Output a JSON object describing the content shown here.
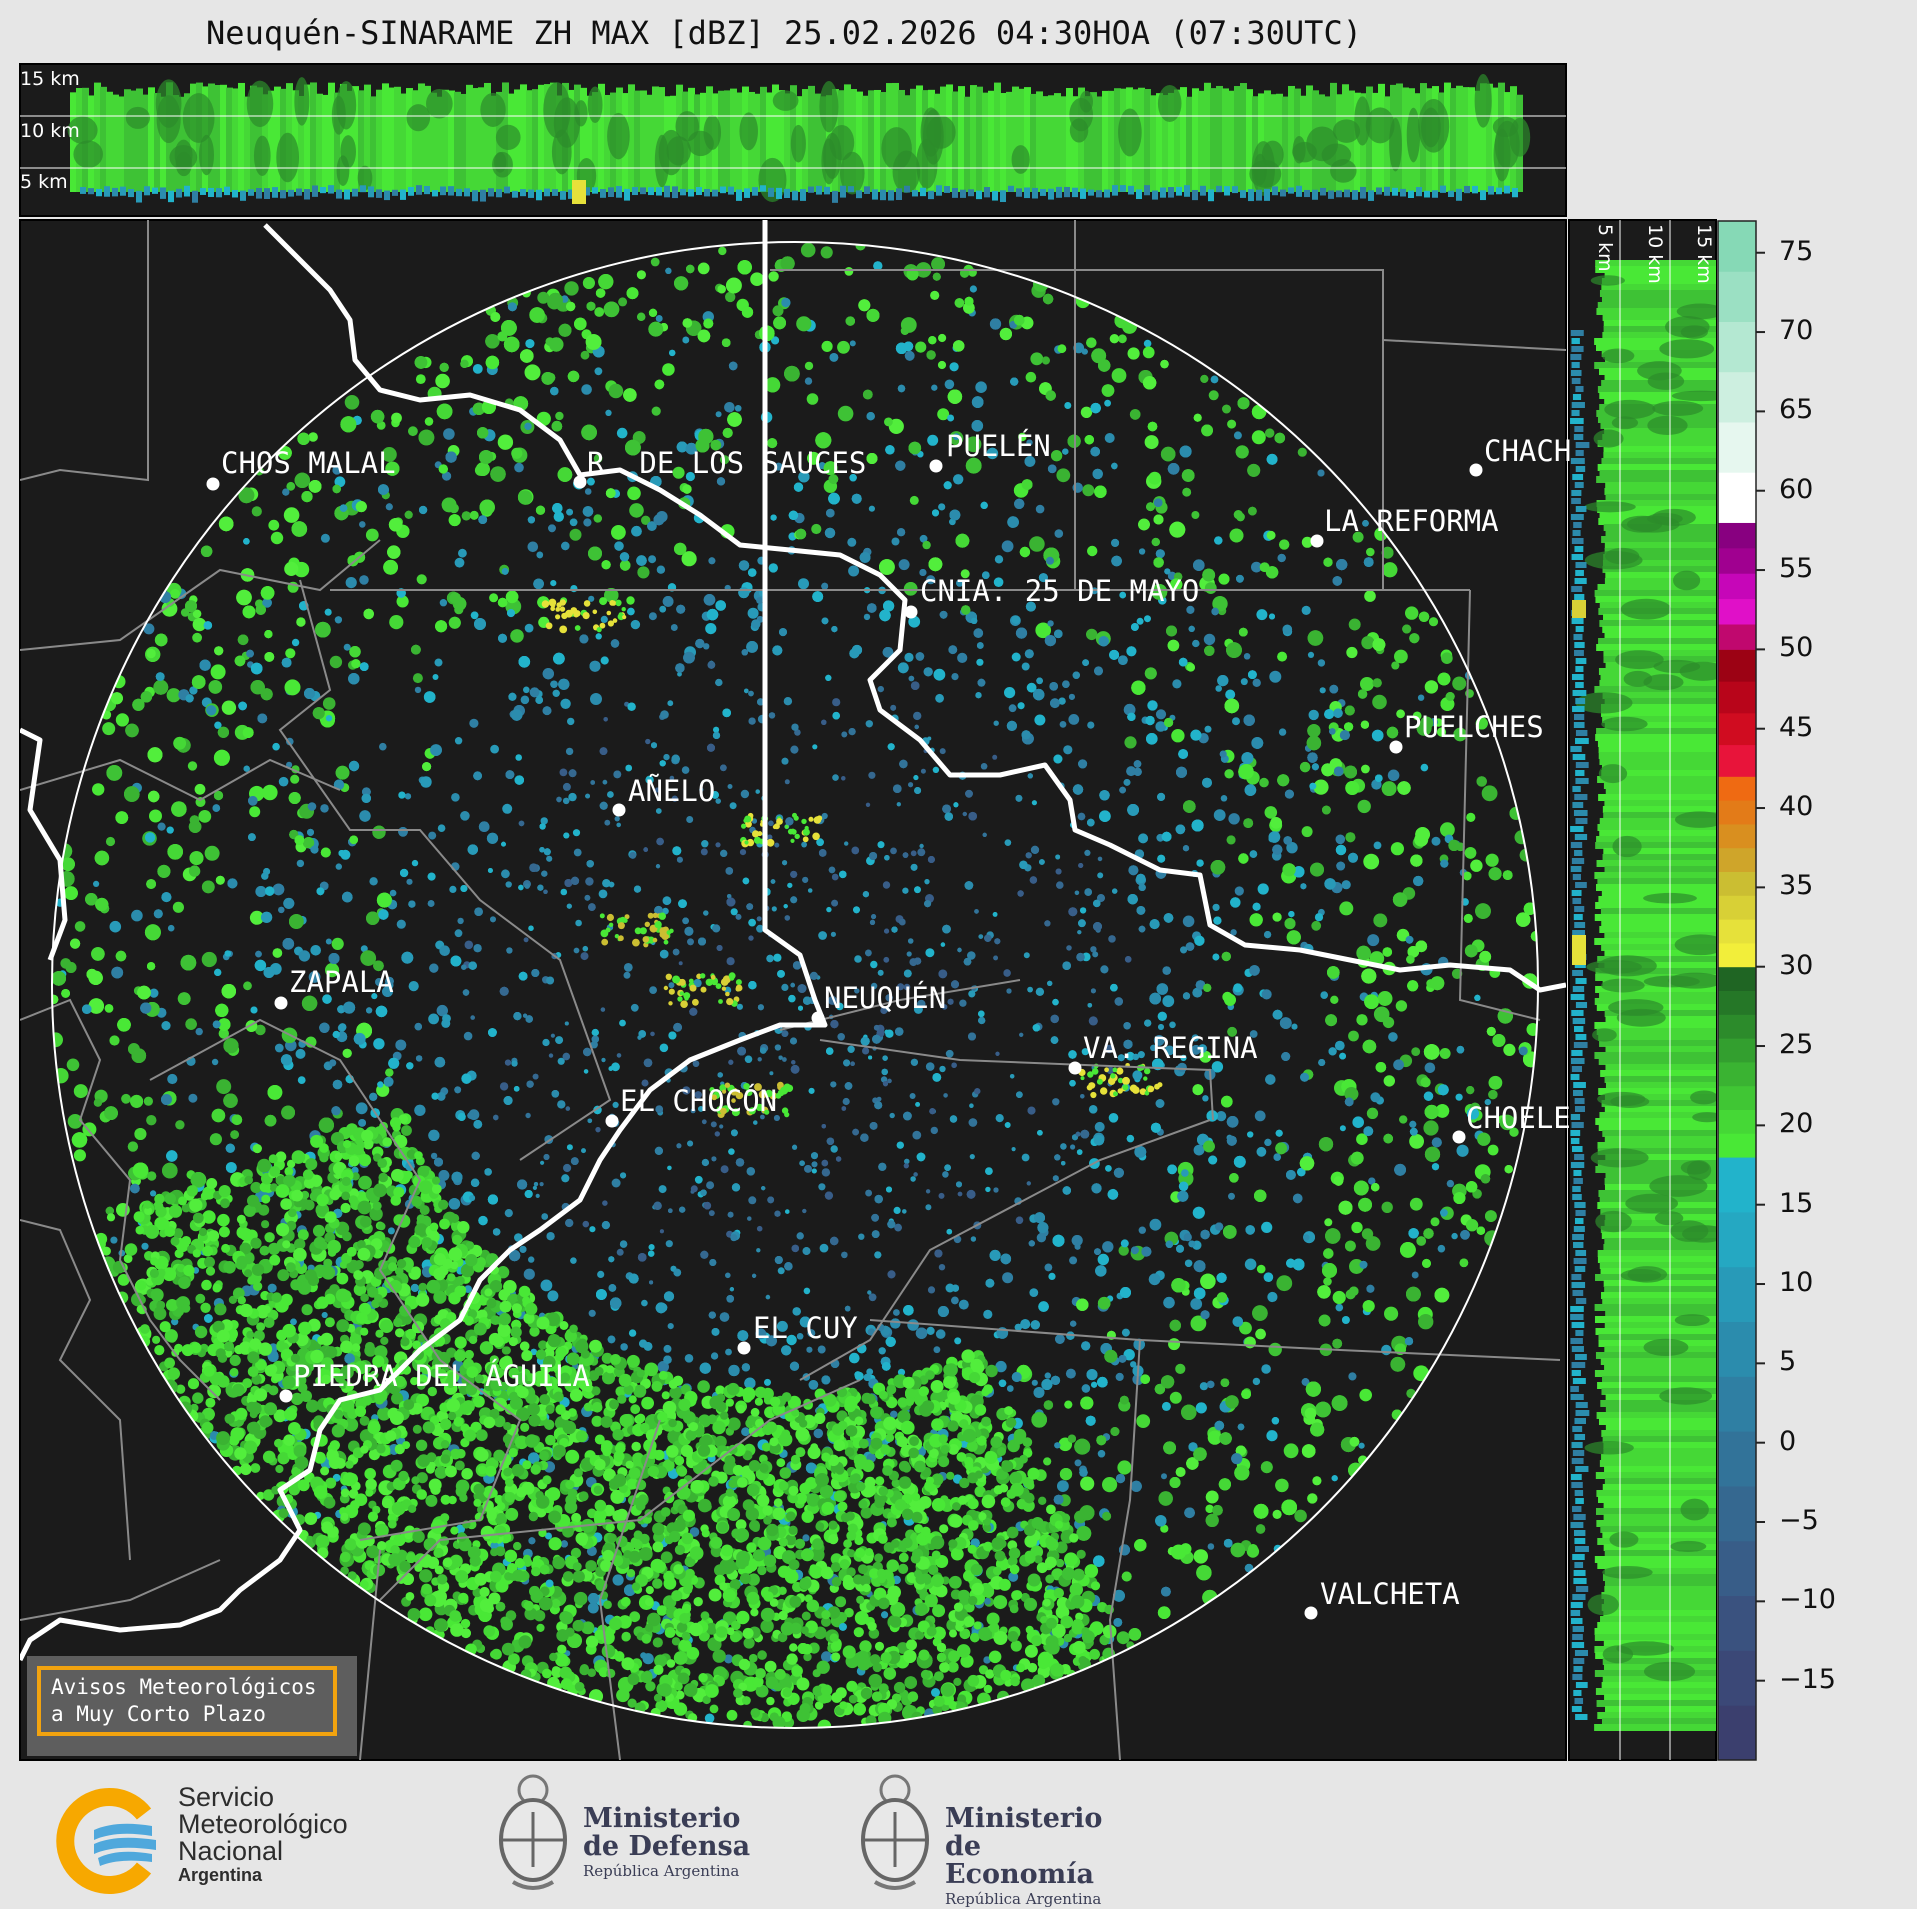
{
  "title": "Neuquén-SINARAME ZH MAX [dBZ] 25.02.2026 04:30HOA (07:30UTC)",
  "top_panel": {
    "altitude_labels": [
      "15 km",
      "10 km",
      "5 km"
    ]
  },
  "side_panel": {
    "altitude_labels": [
      "5 km",
      "10 km",
      "15 km"
    ]
  },
  "cities": [
    {
      "name": "CHOS MALAL"
    },
    {
      "name": "R. DE LOS SAUCES"
    },
    {
      "name": "PUELÉN"
    },
    {
      "name": "CHACH"
    },
    {
      "name": "LA REFORMA"
    },
    {
      "name": "CNIA. 25 DE MAYO"
    },
    {
      "name": "PUELCHES"
    },
    {
      "name": "AÑELO"
    },
    {
      "name": "ZAPALA"
    },
    {
      "name": "NEUQUÉN"
    },
    {
      "name": "VA. REGINA"
    },
    {
      "name": "EL CHOCÓN"
    },
    {
      "name": "CHOELE"
    },
    {
      "name": "EL CUY"
    },
    {
      "name": "PIEDRA DEL ÁGUILA"
    },
    {
      "name": "VALCHETA"
    }
  ],
  "colorbar": {
    "ticks": [
      "75",
      "70",
      "65",
      "60",
      "55",
      "50",
      "45",
      "40",
      "35",
      "30",
      "25",
      "20",
      "15",
      "10",
      "5",
      "0",
      "−5",
      "−10",
      "−15"
    ],
    "range": [
      -20,
      77
    ],
    "bands": [
      {
        "from": -20,
        "to": 18,
        "colors": [
          "#3b3f6e",
          "#3b4877",
          "#3a527f",
          "#385d88",
          "#356890",
          "#327399",
          "#2f7fa3",
          "#2b8cad",
          "#289ab8",
          "#25a8c2",
          "#22b3cb"
        ]
      },
      {
        "from": 18,
        "to": 30,
        "colors": [
          "#49e836",
          "#45d836",
          "#40c634",
          "#3ab332",
          "#339f2f",
          "#2c8b2b",
          "#257727",
          "#1f6523"
        ]
      },
      {
        "from": 30,
        "to": 42,
        "colors": [
          "#f2ee3a",
          "#e6e13a",
          "#d8d036",
          "#cbbe32",
          "#cfa52a",
          "#d98f1f",
          "#e37b18",
          "#ef6a12"
        ]
      },
      {
        "from": 42,
        "to": 50,
        "colors": [
          "#e8143a",
          "#d00c20",
          "#b8051a",
          "#9c0214"
        ]
      },
      {
        "from": 50,
        "to": 58,
        "colors": [
          "#c0086e",
          "#e010c8",
          "#c606b8",
          "#a00090",
          "#880080"
        ]
      },
      {
        "from": 58,
        "to": 77,
        "colors": [
          "#ffffff",
          "#e6f7ef",
          "#cdefe0",
          "#b4e8d2",
          "#9be0c3",
          "#86d9b6"
        ]
      }
    ]
  },
  "alert": {
    "line1": "Avisos Meteorológicos",
    "line2": "a Muy Corto Plazo"
  },
  "logos": {
    "smn": {
      "l1": "Servicio",
      "l2": "Meteorológico",
      "l3": "Nacional",
      "l4": "Argentina"
    },
    "defensa": {
      "l1": "Ministerio",
      "l2": "de Defensa",
      "l3": "República Argentina"
    },
    "economia": {
      "l1": "Ministerio",
      "l2": "de Economía",
      "l3": "República Argentina"
    }
  }
}
